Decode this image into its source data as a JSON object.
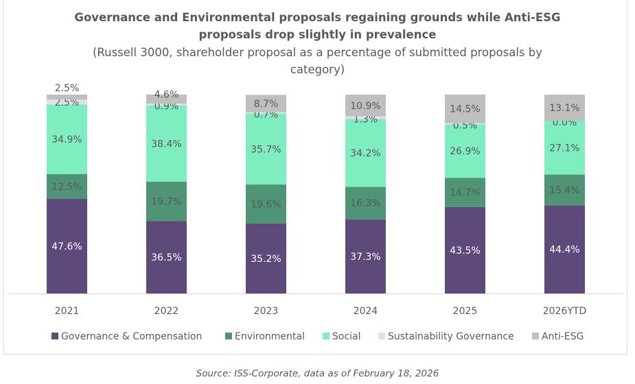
{
  "chart_data": {
    "type": "bar",
    "stacked": true,
    "title": "Governance and Environmental proposals regaining grounds while Anti-ESG proposals drop slightly in prevalence",
    "title_lines": [
      "Governance and Environmental proposals regaining grounds while Anti-ESG",
      "proposals drop slightly in prevalence"
    ],
    "subtitle_lines": [
      "(Russell 3000, shareholder proposal as a percentage of submitted proposals by",
      "category)"
    ],
    "categories": [
      "2021",
      "2022",
      "2023",
      "2024",
      "2025",
      "2026YTD"
    ],
    "series": [
      {
        "name": "Governance & Compensation",
        "color": "#5e4a7a",
        "values": [
          47.6,
          36.5,
          35.2,
          37.3,
          43.5,
          44.4
        ]
      },
      {
        "name": "Environmental",
        "color": "#4e9475",
        "values": [
          12.5,
          19.7,
          19.6,
          16.3,
          14.7,
          15.4
        ]
      },
      {
        "name": "Social",
        "color": "#7eedc0",
        "values": [
          34.9,
          38.4,
          35.7,
          34.2,
          26.9,
          27.1
        ]
      },
      {
        "name": "Sustainability Governance",
        "color": "#e4dfec",
        "values": [
          2.5,
          0.9,
          0.7,
          1.3,
          0.5,
          0.0
        ]
      },
      {
        "name": "Anti-ESG",
        "color": "#bfbfbf",
        "values": [
          2.5,
          4.6,
          8.7,
          10.9,
          14.5,
          13.1
        ]
      }
    ],
    "ylim": [
      0,
      100
    ],
    "grid": false,
    "legend": "bottom",
    "data_labels": true
  },
  "source": "Source: ISS-Corporate, data as of February 18, 2026"
}
